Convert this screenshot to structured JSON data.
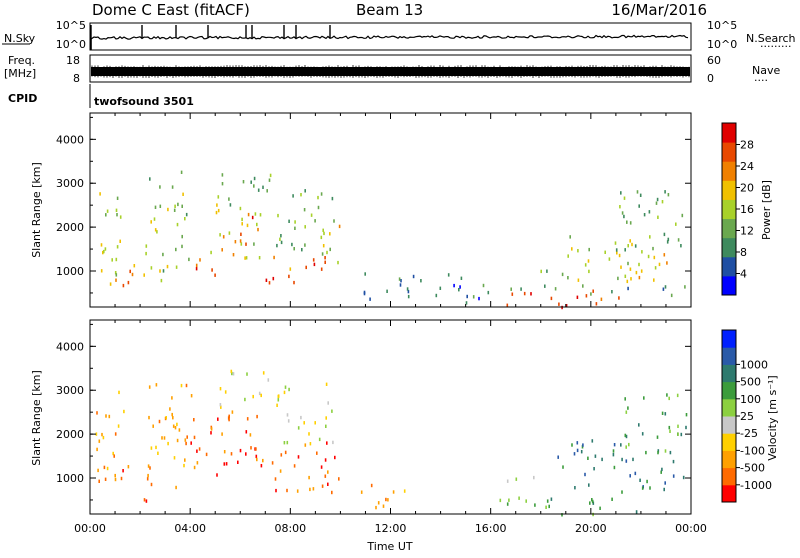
{
  "header": {
    "station": "Dome C East (fitACF)",
    "beam": "Beam 13",
    "date": "16/Mar/2016"
  },
  "top_panels": {
    "nsky_label": "N.Sky",
    "nsearch_label": "N.Search",
    "nsearch_legend": "·········",
    "noise_ticks": [
      "10^5",
      "10^0"
    ],
    "freq_label_1": "Freq.",
    "freq_label_2": "[MHz]",
    "freq_ticks": [
      "18",
      "8"
    ],
    "nave_label": "Nave",
    "nave_legend": "····",
    "nave_ticks": [
      "60",
      "0"
    ],
    "cpid_label": "CPID",
    "cpid_text": "twofsound 3501"
  },
  "colors": {
    "power": [
      "#0000ff",
      "#1f4fa3",
      "#3e8a5e",
      "#6aa84f",
      "#a8d12a",
      "#f0c000",
      "#f08000",
      "#e84800",
      "#e00000"
    ],
    "velocity": [
      "#ff0000",
      "#ff6a00",
      "#ffa000",
      "#ffd000",
      "#c8c8c8",
      "#8cd040",
      "#3c9c3c",
      "#2e7a6e",
      "#2a5aa8",
      "#0020ff"
    ]
  },
  "chart_data": [
    {
      "type": "heatmap",
      "name": "power",
      "xlabel": "",
      "ylabel": "Slant Range [km]",
      "x_unit": "hours UT",
      "xlim": [
        0,
        24
      ],
      "ylim": [
        180,
        4600
      ],
      "yticks": [
        "1000",
        "2000",
        "3000",
        "4000"
      ],
      "colorbar": {
        "label": "Power [dB]",
        "range": [
          0,
          32
        ],
        "ticks": [
          "4",
          "8",
          "12",
          "16",
          "20",
          "24",
          "28"
        ]
      },
      "regions": [
        {
          "t0": 0.2,
          "t1": 1.2,
          "r0": 500,
          "r1": 3100,
          "v": 16
        },
        {
          "t0": 1.0,
          "t1": 2.2,
          "r0": 600,
          "r1": 1400,
          "v": 24
        },
        {
          "t0": 2.2,
          "t1": 4.0,
          "r0": 800,
          "r1": 3300,
          "v": 14
        },
        {
          "t0": 3.9,
          "t1": 5.2,
          "r0": 800,
          "r1": 1300,
          "v": 26
        },
        {
          "t0": 4.3,
          "t1": 6.8,
          "r0": 1300,
          "r1": 2600,
          "v": 18
        },
        {
          "t0": 5.8,
          "t1": 6.6,
          "r0": 1600,
          "r1": 2400,
          "v": 28
        },
        {
          "t0": 5.0,
          "t1": 7.2,
          "r0": 2500,
          "r1": 3400,
          "v": 12
        },
        {
          "t0": 7.0,
          "t1": 9.4,
          "r0": 750,
          "r1": 1500,
          "v": 24
        },
        {
          "t0": 7.4,
          "t1": 9.8,
          "r0": 1400,
          "r1": 3000,
          "v": 13
        },
        {
          "t0": 9.2,
          "t1": 10.0,
          "r0": 900,
          "r1": 2100,
          "v": 19
        },
        {
          "t0": 10.8,
          "t1": 15.8,
          "r0": 300,
          "r1": 1000,
          "v": 8
        },
        {
          "t0": 16.0,
          "t1": 19.5,
          "r0": 950,
          "r1": 1050,
          "v": 11
        },
        {
          "t0": 16.0,
          "t1": 19.8,
          "r0": 200,
          "r1": 560,
          "v": 29
        },
        {
          "t0": 19.6,
          "t1": 21.4,
          "r0": 250,
          "r1": 600,
          "v": 24
        },
        {
          "t0": 15.8,
          "t1": 23.8,
          "r0": 480,
          "r1": 700,
          "v": 8
        },
        {
          "t0": 18.8,
          "t1": 21.8,
          "r0": 800,
          "r1": 1900,
          "v": 16
        },
        {
          "t0": 21.4,
          "t1": 23.6,
          "r0": 800,
          "r1": 1600,
          "v": 20
        },
        {
          "t0": 21.0,
          "t1": 23.8,
          "r0": 1500,
          "r1": 3000,
          "v": 12
        }
      ]
    },
    {
      "type": "heatmap",
      "name": "velocity",
      "xlabel": "Time UT",
      "ylabel": "Slant Range [km]",
      "x_unit": "hours UT",
      "xlim": [
        0,
        24
      ],
      "ylim": [
        180,
        4600
      ],
      "yticks": [
        "1000",
        "2000",
        "3000",
        "4000"
      ],
      "xticks": [
        "00:00",
        "04:00",
        "08:00",
        "12:00",
        "16:00",
        "20:00",
        "00:00"
      ],
      "colorbar": {
        "label": "Velocity [m s⁻¹]",
        "ticks": [
          "-1000",
          "-500",
          "-100",
          "-25",
          "25",
          "100",
          "500",
          "1000"
        ]
      },
      "regions": [
        {
          "t0": 0.2,
          "t1": 1.4,
          "r0": 500,
          "r1": 3100,
          "v": 2
        },
        {
          "t0": 1.2,
          "t1": 2.4,
          "r0": 500,
          "r1": 1300,
          "v": 1
        },
        {
          "t0": 2.2,
          "t1": 4.2,
          "r0": 800,
          "r1": 3300,
          "v": 2
        },
        {
          "t0": 4.0,
          "t1": 6.8,
          "r0": 1000,
          "r1": 2600,
          "v": 1
        },
        {
          "t0": 5.0,
          "t1": 7.2,
          "r0": 2600,
          "r1": 3500,
          "v": 4
        },
        {
          "t0": 6.8,
          "t1": 10.0,
          "r0": 700,
          "r1": 1900,
          "v": 1
        },
        {
          "t0": 7.4,
          "t1": 9.8,
          "r0": 1800,
          "r1": 3200,
          "v": 4
        },
        {
          "t0": 10.6,
          "t1": 12.6,
          "r0": 300,
          "r1": 900,
          "v": 2
        },
        {
          "t0": 16.0,
          "t1": 19.5,
          "r0": 950,
          "r1": 1050,
          "v": 4
        },
        {
          "t0": 16.0,
          "t1": 21.8,
          "r0": 200,
          "r1": 600,
          "v": 6
        },
        {
          "t0": 17.0,
          "t1": 18.6,
          "r0": 350,
          "r1": 560,
          "v": 5
        },
        {
          "t0": 18.6,
          "t1": 21.4,
          "r0": 800,
          "r1": 1900,
          "v": 7
        },
        {
          "t0": 21.2,
          "t1": 23.8,
          "r0": 700,
          "r1": 1700,
          "v": 7
        },
        {
          "t0": 21.0,
          "t1": 23.8,
          "r0": 1600,
          "r1": 3000,
          "v": 6
        }
      ]
    }
  ]
}
